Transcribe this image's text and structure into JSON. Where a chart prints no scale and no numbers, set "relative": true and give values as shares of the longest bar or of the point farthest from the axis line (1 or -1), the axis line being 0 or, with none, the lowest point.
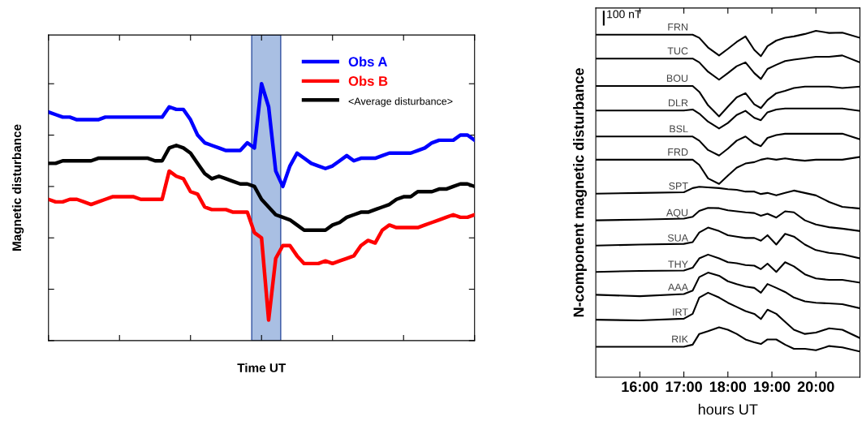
{
  "chart_data": [
    {
      "type": "line",
      "relative": true,
      "xlabel": "Time UT",
      "ylabel": "Magnetic disturbance",
      "legend": "top right",
      "grid": false,
      "marker": "none",
      "line_style": "solid",
      "categories": [
        null,
        null,
        null,
        null,
        null,
        null,
        null,
        null,
        null,
        null,
        null,
        null,
        null,
        null,
        null,
        null,
        null,
        null,
        null,
        null,
        null,
        null,
        null,
        null,
        null,
        null,
        null,
        null,
        null,
        null,
        null,
        null,
        null,
        null,
        null,
        null,
        null,
        null,
        null,
        null,
        null,
        null,
        null,
        null,
        null,
        null,
        null,
        null,
        null,
        null,
        null,
        null,
        null,
        null,
        null,
        null,
        null,
        null,
        null,
        null,
        null
      ],
      "series": [
        {
          "name": "Obs A",
          "color": "#0000ff",
          "values": [
            0.89,
            0.88,
            0.87,
            0.87,
            0.86,
            0.86,
            0.86,
            0.86,
            0.87,
            0.87,
            0.87,
            0.87,
            0.87,
            0.87,
            0.87,
            0.87,
            0.87,
            0.91,
            0.9,
            0.9,
            0.86,
            0.8,
            0.77,
            0.76,
            0.75,
            0.74,
            0.74,
            0.74,
            0.77,
            0.75,
            1.0,
            0.91,
            0.66,
            0.6,
            0.68,
            0.73,
            0.71,
            0.69,
            0.68,
            0.67,
            0.68,
            0.7,
            0.72,
            0.7,
            0.71,
            0.71,
            0.71,
            0.72,
            0.73,
            0.73,
            0.73,
            0.73,
            0.74,
            0.75,
            0.77,
            0.78,
            0.78,
            0.78,
            0.8,
            0.8,
            0.78
          ]
        },
        {
          "name": "Obs B",
          "color": "#ff0000",
          "values": [
            0.55,
            0.54,
            0.54,
            0.55,
            0.55,
            0.54,
            0.53,
            0.54,
            0.55,
            0.56,
            0.56,
            0.56,
            0.56,
            0.55,
            0.55,
            0.55,
            0.55,
            0.66,
            0.64,
            0.63,
            0.58,
            0.57,
            0.52,
            0.51,
            0.51,
            0.51,
            0.5,
            0.5,
            0.5,
            0.42,
            0.4,
            0.08,
            0.32,
            0.37,
            0.37,
            0.33,
            0.3,
            0.3,
            0.3,
            0.31,
            0.3,
            0.31,
            0.32,
            0.33,
            0.37,
            0.39,
            0.38,
            0.43,
            0.45,
            0.44,
            0.44,
            0.44,
            0.44,
            0.45,
            0.46,
            0.47,
            0.48,
            0.49,
            0.48,
            0.48,
            0.49
          ]
        },
        {
          "name": "<Average disturbance>",
          "color": "#000000",
          "values": [
            0.69,
            0.69,
            0.7,
            0.7,
            0.7,
            0.7,
            0.7,
            0.71,
            0.71,
            0.71,
            0.71,
            0.71,
            0.71,
            0.71,
            0.71,
            0.7,
            0.7,
            0.75,
            0.76,
            0.75,
            0.73,
            0.69,
            0.65,
            0.63,
            0.64,
            0.63,
            0.62,
            0.61,
            0.61,
            0.6,
            0.55,
            0.52,
            0.49,
            0.48,
            0.47,
            0.45,
            0.43,
            0.43,
            0.43,
            0.43,
            0.45,
            0.46,
            0.48,
            0.49,
            0.5,
            0.5,
            0.51,
            0.52,
            0.53,
            0.55,
            0.56,
            0.56,
            0.58,
            0.58,
            0.58,
            0.59,
            0.59,
            0.6,
            0.61,
            0.61,
            0.6
          ]
        }
      ]
    },
    {
      "type": "line",
      "relative": true,
      "xlabel": "hours UT",
      "ylabel": "N-component magnetic disturbance",
      "grid": false,
      "marker": "none",
      "line_style": "solid",
      "annotations": [
        "100 nT"
      ],
      "xlim": [
        15,
        21
      ],
      "xticks": [
        {
          "value": 16,
          "label": "16:00"
        },
        {
          "value": 17,
          "label": "17:00"
        },
        {
          "value": 18,
          "label": "18:00"
        },
        {
          "value": 19,
          "label": "19:00"
        },
        {
          "value": 20,
          "label": "20:00"
        }
      ],
      "x": [
        15,
        16,
        17,
        17.2,
        17.35,
        17.55,
        17.8,
        18,
        18.2,
        18.4,
        18.6,
        18.75,
        18.9,
        19.1,
        19.3,
        19.5,
        19.75,
        20,
        20.3,
        20.6,
        21
      ],
      "series": [
        {
          "name": "FRN",
          "color": "#000000",
          "values": [
            0.989,
            0.989,
            0.989,
            0.989,
            0.98,
            0.952,
            0.929,
            0.948,
            0.968,
            0.984,
            0.945,
            0.927,
            0.956,
            0.972,
            0.98,
            0.984,
            0.991,
            1.0,
            0.994,
            0.995,
            0.98
          ]
        },
        {
          "name": "TUC",
          "color": "#000000",
          "values": [
            0.92,
            0.92,
            0.92,
            0.92,
            0.909,
            0.882,
            0.859,
            0.878,
            0.898,
            0.909,
            0.878,
            0.861,
            0.89,
            0.902,
            0.913,
            0.917,
            0.921,
            0.925,
            0.925,
            0.929,
            0.909
          ]
        },
        {
          "name": "BOU",
          "color": "#000000",
          "values": [
            0.841,
            0.841,
            0.841,
            0.841,
            0.824,
            0.785,
            0.753,
            0.781,
            0.808,
            0.82,
            0.788,
            0.777,
            0.8,
            0.82,
            0.827,
            0.835,
            0.839,
            0.839,
            0.839,
            0.835,
            0.839
          ]
        },
        {
          "name": "DLR",
          "color": "#000000",
          "values": [
            0.77,
            0.77,
            0.77,
            0.773,
            0.761,
            0.738,
            0.718,
            0.734,
            0.757,
            0.769,
            0.749,
            0.742,
            0.765,
            0.773,
            0.776,
            0.776,
            0.776,
            0.776,
            0.776,
            0.776,
            0.769
          ]
        },
        {
          "name": "BSL",
          "color": "#000000",
          "values": [
            0.695,
            0.695,
            0.695,
            0.695,
            0.683,
            0.656,
            0.64,
            0.66,
            0.683,
            0.695,
            0.675,
            0.667,
            0.691,
            0.699,
            0.703,
            0.703,
            0.703,
            0.703,
            0.703,
            0.703,
            0.687
          ]
        },
        {
          "name": "FRD",
          "color": "#000000",
          "values": [
            0.628,
            0.628,
            0.628,
            0.628,
            0.613,
            0.574,
            0.558,
            0.582,
            0.605,
            0.617,
            0.621,
            0.628,
            0.632,
            0.628,
            0.632,
            0.628,
            0.625,
            0.628,
            0.628,
            0.628,
            0.636
          ]
        },
        {
          "name": "SPT",
          "color": "#000000",
          "values": [
            0.53,
            0.532,
            0.534,
            0.546,
            0.55,
            0.548,
            0.546,
            0.543,
            0.541,
            0.536,
            0.536,
            0.529,
            0.532,
            0.525,
            0.532,
            0.539,
            0.532,
            0.525,
            0.506,
            0.492,
            0.487
          ]
        },
        {
          "name": "AQU",
          "color": "#000000",
          "values": [
            0.453,
            0.455,
            0.458,
            0.463,
            0.48,
            0.489,
            0.488,
            0.482,
            0.479,
            0.476,
            0.474,
            0.466,
            0.472,
            0.461,
            0.479,
            0.476,
            0.453,
            0.441,
            0.433,
            0.429,
            0.422
          ]
        },
        {
          "name": "SUA",
          "color": "#000000",
          "values": [
            0.38,
            0.383,
            0.385,
            0.39,
            0.418,
            0.432,
            0.422,
            0.41,
            0.406,
            0.402,
            0.402,
            0.394,
            0.41,
            0.383,
            0.414,
            0.406,
            0.383,
            0.367,
            0.359,
            0.355,
            0.343
          ]
        },
        {
          "name": "THY",
          "color": "#000000",
          "values": [
            0.304,
            0.307,
            0.308,
            0.316,
            0.343,
            0.354,
            0.343,
            0.332,
            0.329,
            0.324,
            0.322,
            0.312,
            0.328,
            0.304,
            0.332,
            0.32,
            0.297,
            0.285,
            0.281,
            0.281,
            0.273
          ]
        },
        {
          "name": "AAA",
          "color": "#000000",
          "values": [
            0.238,
            0.234,
            0.24,
            0.25,
            0.289,
            0.302,
            0.293,
            0.277,
            0.269,
            0.262,
            0.258,
            0.244,
            0.269,
            0.258,
            0.246,
            0.23,
            0.219,
            0.215,
            0.213,
            0.211,
            0.199
          ]
        },
        {
          "name": "IRT",
          "color": "#000000",
          "values": [
            0.166,
            0.164,
            0.169,
            0.183,
            0.23,
            0.244,
            0.23,
            0.215,
            0.203,
            0.191,
            0.183,
            0.168,
            0.195,
            0.183,
            0.16,
            0.137,
            0.125,
            0.129,
            0.141,
            0.137,
            0.113
          ]
        },
        {
          "name": "RIK",
          "color": "#000000",
          "values": [
            0.088,
            0.088,
            0.088,
            0.094,
            0.125,
            0.133,
            0.144,
            0.137,
            0.125,
            0.109,
            0.101,
            0.096,
            0.109,
            0.109,
            0.094,
            0.082,
            0.082,
            0.078,
            0.09,
            0.086,
            0.074
          ]
        }
      ]
    }
  ]
}
